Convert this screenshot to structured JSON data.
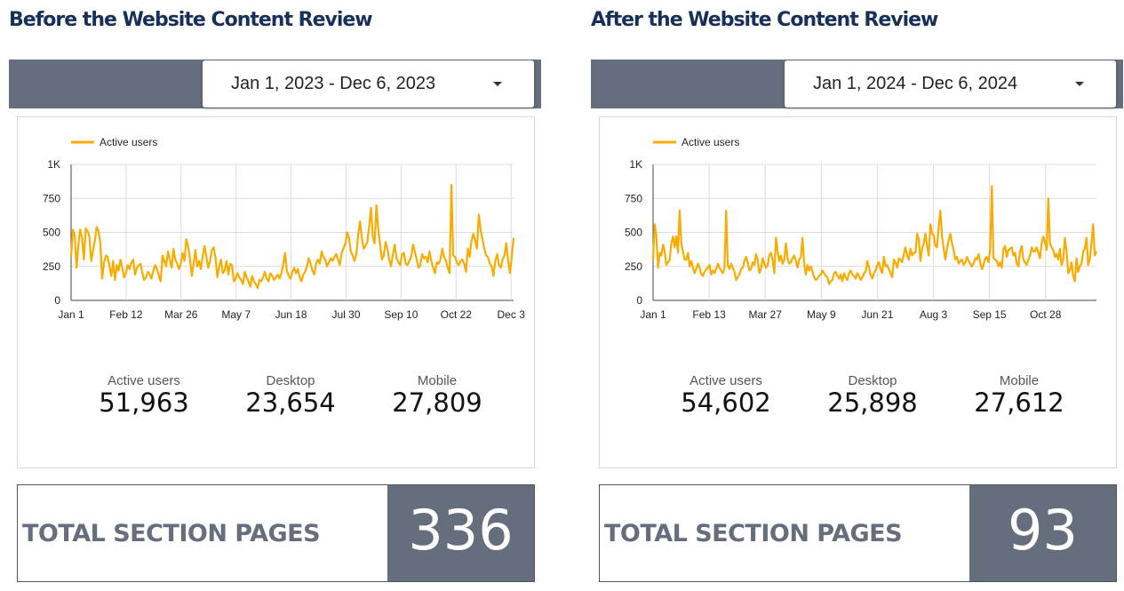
{
  "panels": [
    {
      "title": "Before the Website Content Review",
      "date_range": "Jan 1, 2023 - Dec 6, 2023",
      "scorecards": [
        {
          "label": "Active users",
          "value": "51,963"
        },
        {
          "label": "Desktop",
          "value": "23,654"
        },
        {
          "label": "Mobile",
          "value": "27,809"
        }
      ],
      "total_label": "TOTAL SECTION PAGES",
      "total_value": "336"
    },
    {
      "title": "After the Website Content Review",
      "date_range": "Jan 1, 2024 - Dec 6, 2024",
      "scorecards": [
        {
          "label": "Active users",
          "value": "54,602"
        },
        {
          "label": "Desktop",
          "value": "25,898"
        },
        {
          "label": "Mobile",
          "value": "27,612"
        }
      ],
      "total_label": "TOTAL SECTION PAGES",
      "total_value": "93"
    }
  ],
  "colors": {
    "accent": "#f9ab00",
    "bar": "#646e7c",
    "title": "#16305a"
  },
  "chart_data": [
    {
      "type": "line",
      "title": "",
      "legend": "top-left",
      "grid": true,
      "ylim": [
        0,
        1000
      ],
      "y_ticks": [
        "0",
        "250",
        "500",
        "750",
        "1K"
      ],
      "x_tick_labels": [
        "Jan 1",
        "Feb 12",
        "Mar 26",
        "May 7",
        "Jun 18",
        "Jul 30",
        "Sep 10",
        "Oct 22",
        "Dec 3"
      ],
      "series": [
        {
          "name": "Active users",
          "x_start": "2023-01-01",
          "x_end": "2023-12-06",
          "values": [
            320,
            520,
            480,
            240,
            410,
            520,
            460,
            300,
            530,
            510,
            470,
            290,
            360,
            440,
            540,
            510,
            420,
            160,
            280,
            330,
            320,
            250,
            180,
            290,
            150,
            260,
            220,
            300,
            240,
            170,
            200,
            260,
            230,
            280,
            300,
            190,
            240,
            260,
            270,
            200,
            150,
            170,
            210,
            190,
            160,
            220,
            260,
            230,
            180,
            140,
            330,
            290,
            250,
            360,
            300,
            240,
            380,
            300,
            270,
            230,
            270,
            350,
            290,
            450,
            400,
            310,
            180,
            270,
            370,
            250,
            290,
            230,
            330,
            400,
            320,
            240,
            290,
            370,
            390,
            310,
            170,
            250,
            300,
            200,
            220,
            290,
            190,
            270,
            260,
            140,
            160,
            200,
            170,
            150,
            120,
            210,
            170,
            140,
            100,
            180,
            140,
            120,
            90,
            150,
            140,
            170,
            210,
            160,
            140,
            200,
            180,
            150,
            170,
            190,
            160,
            200,
            260,
            350,
            220,
            180,
            160,
            210,
            240,
            200,
            230,
            170,
            140,
            190,
            210,
            250,
            310,
            270,
            220,
            190,
            270,
            300,
            270,
            360,
            320,
            300,
            250,
            280,
            310,
            290,
            320,
            340,
            300,
            260,
            350,
            380,
            420,
            500,
            460,
            360,
            330,
            290,
            340,
            480,
            580,
            460,
            380,
            400,
            430,
            540,
            680,
            470,
            420,
            700,
            520,
            410,
            300,
            330,
            430,
            380,
            300,
            250,
            340,
            410,
            310,
            280,
            260,
            340,
            350,
            270,
            260,
            290,
            320,
            410,
            360,
            300,
            240,
            260,
            340,
            310,
            320,
            280,
            360,
            290,
            240,
            200,
            280,
            270,
            300,
            380,
            320,
            290,
            240,
            200,
            850,
            330,
            320,
            280,
            260,
            290,
            300,
            270,
            210,
            380,
            320,
            440,
            490,
            440,
            380,
            630,
            520,
            450,
            380,
            330,
            320,
            270,
            250,
            180,
            290,
            340,
            260,
            240,
            300,
            330,
            420,
            300,
            200,
            320,
            460
          ]
        }
      ]
    },
    {
      "type": "line",
      "title": "",
      "legend": "top-left",
      "grid": true,
      "ylim": [
        0,
        1000
      ],
      "y_ticks": [
        "0",
        "250",
        "500",
        "750",
        "1K"
      ],
      "x_tick_labels": [
        "Jan 1",
        "Feb 13",
        "Mar 27",
        "May 9",
        "Jun 21",
        "Aug 3",
        "Sep 15",
        "Oct 28"
      ],
      "series": [
        {
          "name": "Active users",
          "x_start": "2024-01-01",
          "x_end": "2024-12-06",
          "values": [
            300,
            560,
            470,
            240,
            350,
            330,
            410,
            360,
            260,
            280,
            300,
            420,
            470,
            390,
            470,
            350,
            660,
            420,
            360,
            300,
            300,
            350,
            250,
            290,
            240,
            200,
            230,
            270,
            240,
            190,
            180,
            210,
            230,
            240,
            260,
            190,
            220,
            200,
            230,
            270,
            240,
            220,
            200,
            240,
            660,
            260,
            230,
            270,
            240,
            210,
            150,
            170,
            190,
            230,
            240,
            290,
            320,
            280,
            220,
            230,
            280,
            260,
            340,
            300,
            200,
            230,
            310,
            270,
            240,
            260,
            330,
            350,
            300,
            200,
            460,
            360,
            290,
            330,
            270,
            300,
            420,
            310,
            270,
            280,
            310,
            330,
            290,
            240,
            300,
            320,
            460,
            270,
            190,
            260,
            220,
            250,
            210,
            170,
            150,
            160,
            180,
            190,
            220,
            200,
            180,
            170,
            120,
            140,
            150,
            200,
            210,
            180,
            160,
            190,
            140,
            200,
            170,
            150,
            200,
            220,
            190,
            180,
            160,
            200,
            180,
            150,
            170,
            200,
            210,
            290,
            240,
            190,
            160,
            200,
            220,
            260,
            280,
            230,
            200,
            320,
            250,
            260,
            230,
            200,
            170,
            300,
            280,
            240,
            310,
            300,
            280,
            340,
            390,
            330,
            300,
            380,
            330,
            350,
            350,
            490,
            450,
            290,
            380,
            420,
            490,
            400,
            330,
            560,
            490,
            480,
            400,
            390,
            540,
            660,
            470,
            380,
            300,
            380,
            440,
            490,
            420,
            370,
            300,
            320,
            270,
            290,
            300,
            260,
            280,
            320,
            290,
            270,
            250,
            270,
            310,
            300,
            340,
            280,
            230,
            260,
            310,
            320,
            280,
            380,
            840,
            310,
            300,
            290,
            250,
            280,
            240,
            380,
            400,
            320,
            370,
            380,
            390,
            330,
            350,
            270,
            250,
            360,
            400,
            300,
            280,
            260,
            300,
            330,
            390,
            360,
            360,
            390,
            350,
            310,
            420,
            470,
            430,
            370,
            750,
            420,
            390,
            370,
            320,
            340,
            300,
            380,
            260,
            300,
            460,
            360,
            200,
            220,
            280,
            180,
            140,
            310,
            210,
            250,
            270,
            360,
            380,
            460,
            260,
            300,
            420,
            560,
            330,
            360
          ]
        }
      ]
    }
  ]
}
